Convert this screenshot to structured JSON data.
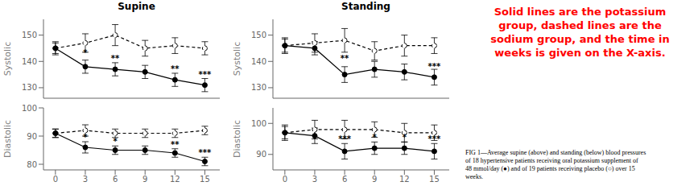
{
  "chart_data": [
    {
      "type": "line",
      "title": "Supine",
      "y_label": "Systolic",
      "x": [
        0,
        3,
        6,
        9,
        12,
        15
      ],
      "xlim": [
        -1.2,
        16.5
      ],
      "xticks": [
        0,
        3,
        6,
        9,
        12,
        15
      ],
      "ylim": [
        126,
        156
      ],
      "yticks": [
        130,
        140,
        150
      ],
      "tick_labels": "y",
      "series": [
        {
          "values": [
            145,
            147,
            150,
            145,
            146,
            145
          ],
          "errors": [
            2.5,
            3.5,
            4.0,
            3.0,
            3.0,
            2.5
          ],
          "color": "black",
          "line_style": "dashed",
          "marker": "open_circle"
        },
        {
          "values": [
            145,
            138,
            137,
            136,
            133,
            131
          ],
          "errors": [
            2.0,
            2.5,
            2.5,
            2.5,
            2.5,
            2.5
          ],
          "color": "black",
          "line_style": "solid",
          "marker": "filled_circle"
        }
      ],
      "annotations": [
        {
          "x": 3,
          "y": 141.5,
          "text": "*"
        },
        {
          "x": 6,
          "y": 139.5,
          "text": "**"
        },
        {
          "x": 12,
          "y": 135.5,
          "text": "**"
        },
        {
          "x": 15,
          "y": 133.5,
          "text": "***"
        }
      ]
    },
    {
      "type": "line",
      "y_label": "Diastolic",
      "x": [
        0,
        3,
        6,
        9,
        12,
        15
      ],
      "xlim": [
        -1.2,
        16.5
      ],
      "xticks": [
        0,
        3,
        6,
        9,
        12,
        15
      ],
      "ylim": [
        78,
        100
      ],
      "yticks": [
        80,
        90,
        100
      ],
      "series": [
        {
          "values": [
            91,
            92,
            91,
            91,
            91,
            92
          ],
          "errors": [
            1.5,
            2.0,
            1.5,
            1.5,
            1.5,
            1.5
          ],
          "color": "black",
          "line_style": "dashed",
          "marker": "open_circle"
        },
        {
          "values": [
            91,
            86,
            85,
            85,
            84,
            81
          ],
          "errors": [
            1.5,
            2.0,
            1.5,
            1.5,
            1.5,
            1.5
          ],
          "color": "black",
          "line_style": "solid",
          "marker": "filled_circle"
        }
      ],
      "annotations": [
        {
          "x": 3,
          "y": 88.0,
          "text": "*"
        },
        {
          "x": 6,
          "y": 86.5,
          "text": "*"
        },
        {
          "x": 12,
          "y": 85.5,
          "text": "**"
        },
        {
          "x": 15,
          "y": 82.5,
          "text": "***"
        }
      ]
    },
    {
      "type": "line",
      "title": "Standing",
      "y_label": "Systolic",
      "x": [
        0,
        3,
        6,
        9,
        12,
        15
      ],
      "xlim": [
        -1.2,
        16.5
      ],
      "xticks": [
        0,
        3,
        6,
        9,
        12,
        15
      ],
      "ylim": [
        126,
        156
      ],
      "yticks": [
        130,
        140,
        150
      ],
      "tick_labels": "y",
      "series": [
        {
          "values": [
            146,
            147,
            148,
            144,
            146,
            146
          ],
          "errors": [
            3.0,
            3.5,
            4.5,
            3.5,
            4.0,
            3.0
          ],
          "color": "black",
          "line_style": "dashed",
          "marker": "open_circle"
        },
        {
          "values": [
            146,
            145,
            135,
            137,
            136,
            134
          ],
          "errors": [
            2.5,
            2.5,
            3.0,
            3.0,
            3.0,
            3.0
          ],
          "color": "black",
          "line_style": "solid",
          "marker": "filled_circle"
        }
      ],
      "annotations": [
        {
          "x": 6,
          "y": 139.5,
          "text": "**"
        },
        {
          "x": 15,
          "y": 136.5,
          "text": "***"
        }
      ]
    },
    {
      "type": "line",
      "y_label": "Diastolic",
      "x": [
        0,
        3,
        6,
        9,
        12,
        15
      ],
      "xlim": [
        -1.2,
        16.5
      ],
      "xticks": [
        0,
        3,
        6,
        9,
        12,
        15
      ],
      "ylim": [
        85,
        105
      ],
      "yticks": [
        90,
        100
      ],
      "series": [
        {
          "values": [
            97,
            98,
            98,
            98,
            97,
            97
          ],
          "errors": [
            2.5,
            3.0,
            3.0,
            2.5,
            3.0,
            2.5
          ],
          "color": "black",
          "line_style": "dashed",
          "marker": "open_circle"
        },
        {
          "values": [
            97,
            96,
            91,
            92,
            92,
            91
          ],
          "errors": [
            2.0,
            2.5,
            2.5,
            2.0,
            2.0,
            2.5
          ],
          "color": "black",
          "line_style": "solid",
          "marker": "filled_circle"
        }
      ],
      "annotations": [
        {
          "x": 6,
          "y": 93.5,
          "text": "***"
        },
        {
          "x": 9,
          "y": 94.0,
          "text": "*"
        },
        {
          "x": 12,
          "y": 94.0,
          "text": "*"
        },
        {
          "x": 15,
          "y": 93.5,
          "text": "***"
        }
      ]
    }
  ],
  "annotations": [
    {
      "text": "Solid lines are the potassium\ngroup, dashed lines are the\nsodium group, and the time in\nweeks is given on the X-axis.",
      "color": "red"
    },
    {
      "text": "FIG 1—Average supine (above) and standing (below) blood pressures\nof 18 hypertensive patients receiving oral potassium supplement of\n48 mmol/day (●) and of 19 patients receiving placebo (○) over 15\nweeks.",
      "color": "black"
    }
  ]
}
